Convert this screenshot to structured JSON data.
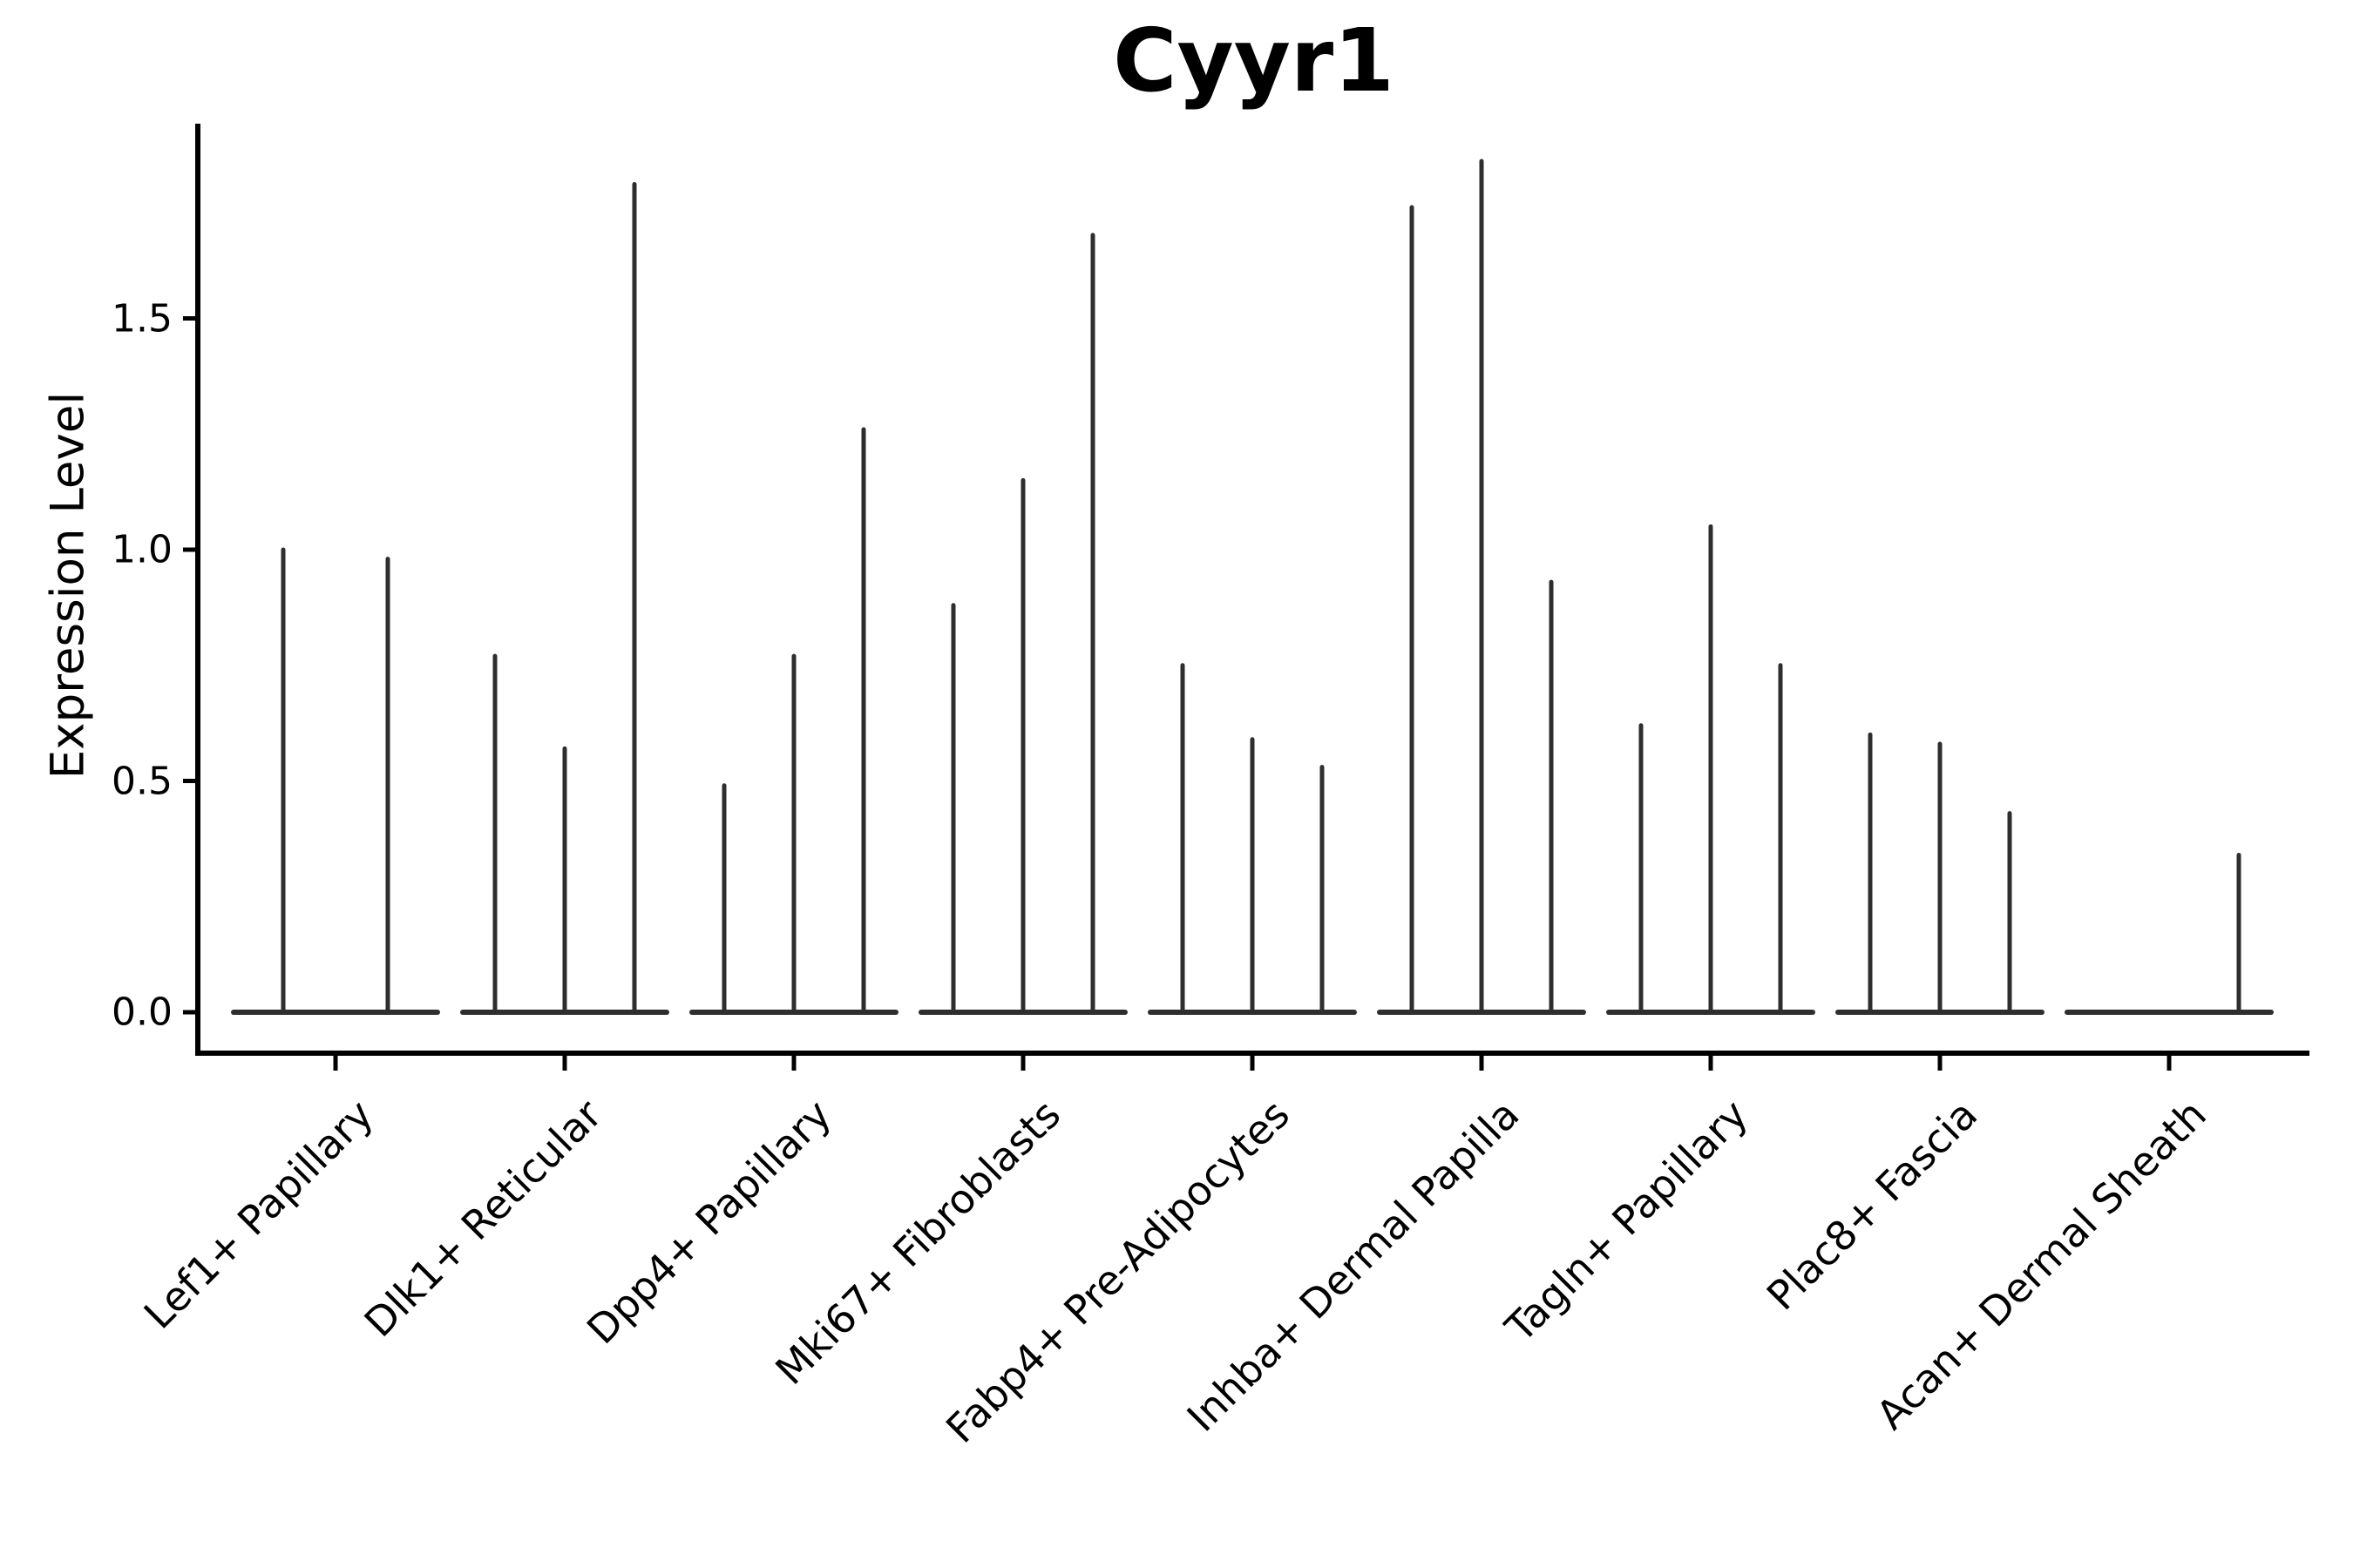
{
  "title": "Cyyr1",
  "y_axis": {
    "label": "Expression Level",
    "tick_labels": [
      "0.0",
      "0.5",
      "1.0",
      "1.5"
    ]
  },
  "x_axis": {
    "tick_labels": [
      "Lef1+ Papillary",
      "Dlk1+ Reticular",
      "Dpp4+ Papillary",
      "Mki67+ Fibroblasts",
      "Fabp4+ Pre-Adipocytes",
      "Inhba+ Dermal Papilla",
      "Tagln+ Papillary",
      "Plac8+ Fascia",
      "Acan+ Dermal Sheath"
    ]
  },
  "colors": {
    "violin": "#2e2e2e",
    "axis": "#000000",
    "text": "#000000",
    "background": "#ffffff"
  },
  "chart_data": {
    "type": "violin",
    "title": "Cyyr1",
    "xlabel": "",
    "ylabel": "Expression Level",
    "ylim": [
      -0.09,
      1.92
    ],
    "yticks": [
      0.0,
      0.5,
      1.0,
      1.5
    ],
    "grid": false,
    "legend": false,
    "x_tick_rotation_deg": 45,
    "categories": [
      "Lef1+ Papillary",
      "Dlk1+ Reticular",
      "Dpp4+ Papillary",
      "Mki67+ Fibroblasts",
      "Fabp4+ Pre-Adipocytes",
      "Inhba+ Dermal Papilla",
      "Tagln+ Papillary",
      "Plac8+ Fascia",
      "Acan+ Dermal Sheath"
    ],
    "groups": [
      {
        "category": "Lef1+ Papillary",
        "violin_peaks": [
          1.0,
          0.98
        ]
      },
      {
        "category": "Dlk1+ Reticular",
        "violin_peaks": [
          0.77,
          0.57,
          1.79
        ]
      },
      {
        "category": "Dpp4+ Papillary",
        "violin_peaks": [
          0.49,
          0.77,
          1.26
        ]
      },
      {
        "category": "Mki67+ Fibroblasts",
        "violin_peaks": [
          0.88,
          1.15,
          1.68
        ]
      },
      {
        "category": "Fabp4+ Pre-Adipocytes",
        "violin_peaks": [
          0.75,
          0.59,
          0.53
        ]
      },
      {
        "category": "Inhba+ Dermal Papilla",
        "violin_peaks": [
          1.74,
          1.84,
          0.93
        ]
      },
      {
        "category": "Tagln+ Papillary",
        "violin_peaks": [
          0.62,
          1.05,
          0.75
        ]
      },
      {
        "category": "Plac8+ Fascia",
        "violin_peaks": [
          0.6,
          0.58,
          0.43
        ]
      },
      {
        "category": "Acan+ Dermal Sheath",
        "violin_peaks": [
          0.0,
          0.0,
          0.34
        ]
      }
    ]
  }
}
